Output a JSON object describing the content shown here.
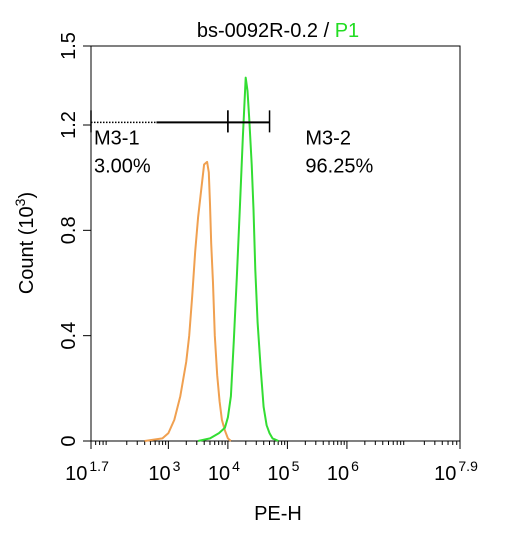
{
  "chart_data": {
    "type": "histogram",
    "title_prefix": "bs-0092R-0.2 / ",
    "title_gate": "P1",
    "title_gate_color": "#22dd22",
    "xlabel": "PE-H",
    "ylabel_main": "Count  (10",
    "ylabel_sup": "3",
    "ylabel_close": ")",
    "x_scale": "log",
    "xlim": [
      1.7,
      7.9
    ],
    "ylim": [
      0,
      1.5
    ],
    "x_ticks": [
      {
        "base": "10",
        "exp": "1.7",
        "value": 1.7
      },
      {
        "base": "10",
        "exp": "3",
        "value": 3
      },
      {
        "base": "10",
        "exp": "4",
        "value": 4
      },
      {
        "base": "10",
        "exp": "5",
        "value": 5
      },
      {
        "base": "10",
        "exp": "6",
        "value": 6
      },
      {
        "base": "10",
        "exp": "7.9",
        "value": 7.9
      }
    ],
    "y_ticks": [
      {
        "label": "0",
        "value": 0
      },
      {
        "label": "0.4",
        "value": 0.4
      },
      {
        "label": "0.8",
        "value": 0.8
      },
      {
        "label": "1.2",
        "value": 1.2
      },
      {
        "label": "1.5",
        "value": 1.5
      }
    ],
    "series": [
      {
        "color": "#f0a050",
        "x": [
          2.6,
          2.9,
          3.0,
          3.1,
          3.2,
          3.3,
          3.35,
          3.4,
          3.45,
          3.5,
          3.55,
          3.6,
          3.65,
          3.68,
          3.7,
          3.72,
          3.75,
          3.78,
          3.82,
          3.86,
          3.9,
          3.95,
          4.0,
          4.05
        ],
        "y": [
          0,
          0.01,
          0.03,
          0.08,
          0.17,
          0.3,
          0.4,
          0.55,
          0.72,
          0.85,
          0.95,
          1.05,
          1.06,
          1.02,
          0.9,
          0.75,
          0.6,
          0.4,
          0.25,
          0.15,
          0.08,
          0.04,
          0.01,
          0
        ]
      },
      {
        "color": "#33dd33",
        "x": [
          3.5,
          3.7,
          3.85,
          3.95,
          4.0,
          4.05,
          4.1,
          4.15,
          4.2,
          4.25,
          4.3,
          4.33,
          4.36,
          4.4,
          4.43,
          4.46,
          4.5,
          4.55,
          4.6,
          4.65,
          4.7,
          4.75,
          4.8,
          4.85
        ],
        "y": [
          0,
          0.01,
          0.03,
          0.05,
          0.09,
          0.17,
          0.38,
          0.62,
          0.88,
          1.15,
          1.38,
          1.33,
          1.22,
          1.05,
          0.88,
          0.65,
          0.45,
          0.28,
          0.13,
          0.06,
          0.03,
          0.01,
          0.005,
          0
        ]
      }
    ],
    "markers": [
      {
        "name": "M3-1",
        "percent": "3.00%",
        "x_start": 1.7,
        "x_end": 4.0,
        "dotted_until": 2.8
      },
      {
        "name": "M3-2",
        "percent": "96.25%",
        "x_start": 4.0,
        "x_end": 4.7
      }
    ],
    "marker_y": 1.21
  }
}
